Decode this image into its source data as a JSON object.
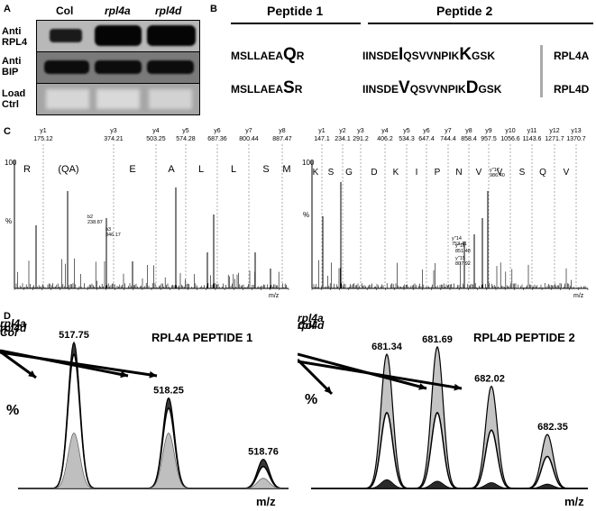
{
  "panels": {
    "a": "A",
    "b": "B",
    "c": "C",
    "d": "D"
  },
  "blot": {
    "columns": [
      "Col",
      "rpl4a",
      "rpl4d"
    ],
    "rows": [
      {
        "line1": "Anti",
        "line2": "RPL4"
      },
      {
        "line1": "Anti",
        "line2": "BIP"
      },
      {
        "line1": "Load",
        "line2": "Ctrl"
      }
    ]
  },
  "peptides": {
    "header1": "Peptide 1",
    "header2": "Peptide 2",
    "rows": [
      {
        "p1_pre": "MSLLAEA",
        "p1_var": "Q",
        "p1_post": "R",
        "p2_pre": "IINSDE",
        "p2_var1": "I",
        "p2_mid": "QSVVNPIK",
        "p2_var2": "K",
        "p2_post": "GSK",
        "protein": "RPL4A"
      },
      {
        "p1_pre": "MSLLAEA",
        "p1_var": "S",
        "p1_post": "R",
        "p2_pre": "IINSDE",
        "p2_var1": "V",
        "p2_mid": "QSVVNPIK",
        "p2_var2": "D",
        "p2_post": "GSK",
        "protein": "RPL4D"
      }
    ]
  },
  "spectrum_left": {
    "y_max_label": "100",
    "y_unit": "%",
    "x_unit": "m/z",
    "ions": [
      {
        "name": "y1",
        "mass": "175.12"
      },
      {
        "name": "y3",
        "mass": "374.21"
      },
      {
        "name": "y4",
        "mass": "503.25"
      },
      {
        "name": "y5",
        "mass": "574.28"
      },
      {
        "name": "y6",
        "mass": "687.36"
      },
      {
        "name": "y7",
        "mass": "800.44"
      },
      {
        "name": "y8",
        "mass": "887.47"
      }
    ],
    "residues": [
      "R",
      "(QA)",
      "E",
      "A",
      "L",
      "L",
      "S",
      "M"
    ],
    "annotations": [
      {
        "label": "b2",
        "value": "238.87"
      },
      {
        "label": "b3",
        "value": "346.17"
      }
    ]
  },
  "spectrum_right": {
    "y_max_label": "100",
    "y_unit": "%",
    "x_unit": "m/z",
    "ions": [
      {
        "name": "y1",
        "mass": "147.1"
      },
      {
        "name": "y2",
        "mass": "234.1"
      },
      {
        "name": "y3",
        "mass": "291.2"
      },
      {
        "name": "y4",
        "mass": "406.2"
      },
      {
        "name": "y5",
        "mass": "534.3"
      },
      {
        "name": "y6",
        "mass": "647.4"
      },
      {
        "name": "y7",
        "mass": "744.4"
      },
      {
        "name": "y8",
        "mass": "858.4"
      },
      {
        "name": "y9",
        "mass": "957.5"
      },
      {
        "name": "y10",
        "mass": "1056.6"
      },
      {
        "name": "y11",
        "mass": "1143.6"
      },
      {
        "name": "y12",
        "mass": "1271.7"
      },
      {
        "name": "y13",
        "mass": "1370.7"
      }
    ],
    "residues": [
      "K",
      "S",
      "G",
      "D",
      "K",
      "I",
      "P",
      "N",
      "V",
      "V",
      "S",
      "Q",
      "V"
    ],
    "annotations": [
      {
        "label": "y''17",
        "value": "986.40"
      },
      {
        "label": "y''14",
        "value": "753.41"
      },
      {
        "label": "y''16",
        "value": "851.48"
      },
      {
        "label": "y''15",
        "value": "807.92"
      }
    ]
  },
  "chart_data": [
    {
      "type": "area",
      "title": "RPL4A PEPTIDE 1",
      "ylabel": "%",
      "xlabel": "m/z",
      "peaks": [
        517.75,
        518.25,
        518.76
      ],
      "series": [
        {
          "name": "rpl4d",
          "values": [
            1.0,
            0.62,
            0.2
          ]
        },
        {
          "name": "Col",
          "values": [
            0.92,
            0.55,
            0.15
          ]
        },
        {
          "name": "rpl4a",
          "values": [
            0.38,
            0.38,
            0.07
          ]
        }
      ]
    },
    {
      "type": "area",
      "title": "RPL4D PEPTIDE 2",
      "ylabel": "%",
      "xlabel": "m/z",
      "peaks": [
        681.34,
        681.69,
        682.02,
        682.35
      ],
      "series": [
        {
          "name": "rpl4a",
          "values": [
            0.92,
            0.97,
            0.7,
            0.37
          ]
        },
        {
          "name": "Col",
          "values": [
            0.52,
            0.52,
            0.4,
            0.22
          ]
        },
        {
          "name": "rpl4d",
          "values": [
            0.06,
            0.05,
            0.04,
            0.03
          ]
        }
      ]
    }
  ]
}
